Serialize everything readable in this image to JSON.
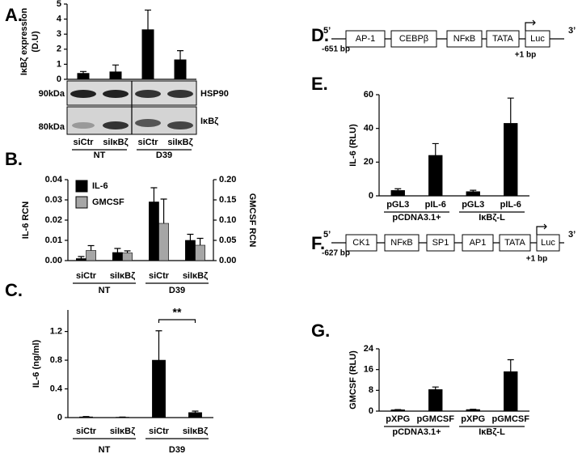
{
  "chart_data": [
    {
      "type": "bar",
      "panel_label": "A.",
      "ylabel": [
        "IκBζ expression",
        "(D.U)"
      ],
      "categories": [
        "siCtr",
        "siIκBζ",
        "siCtr",
        "siIκBζ"
      ],
      "groups": [
        "NT",
        "D39"
      ],
      "series": [
        {
          "color": "#000000",
          "values": [
            0.4,
            0.5,
            3.3,
            1.3
          ],
          "errors": [
            0.12,
            0.45,
            1.3,
            0.6
          ]
        }
      ],
      "ylim": [
        0,
        5
      ],
      "yticks": [
        0,
        1,
        2,
        3,
        4,
        5
      ]
    },
    {
      "type": "bar",
      "panel_label": "B.",
      "ylabel": "IL-6 RCN",
      "y2label": "GMCSF RCN",
      "categories": [
        "siCtr",
        "siIκBζ",
        "siCtr",
        "siIκBζ"
      ],
      "groups": [
        "NT",
        "D39"
      ],
      "series": [
        {
          "name": "IL-6",
          "color": "#000000",
          "values": [
            0.001,
            0.004,
            0.029,
            0.01
          ],
          "errors": [
            0.001,
            0.002,
            0.007,
            0.003
          ]
        },
        {
          "name": "GMCSF",
          "color": "#a6a6a6",
          "axis": "y2",
          "values": [
            0.025,
            0.019,
            0.092,
            0.038
          ],
          "errors": [
            0.012,
            0.005,
            0.06,
            0.017
          ]
        }
      ],
      "ylim": [
        0,
        0.04
      ],
      "yticks": [
        {
          "value": 0,
          "label": "0.00"
        },
        0.01,
        0.02,
        0.03,
        0.04
      ],
      "y2lim": [
        0,
        0.2
      ],
      "y2ticks": [
        {
          "value": 0,
          "label": "0.00"
        },
        0.05,
        {
          "value": 0.1,
          "label": "0.10"
        },
        0.15,
        {
          "value": 0.2,
          "label": "0.20"
        }
      ],
      "legend": "top-left"
    },
    {
      "type": "bar",
      "panel_label": "C.",
      "ylabel": "IL-6 (ng/ml)",
      "categories": [
        "siCtr",
        "siIκBζ",
        "siCtr",
        "siIκBζ"
      ],
      "groups": [
        "NT",
        "D39"
      ],
      "series": [
        {
          "color": "#000000",
          "values": [
            0.01,
            0.005,
            0.8,
            0.07
          ],
          "errors": [
            0.005,
            0.003,
            0.41,
            0.02
          ]
        }
      ],
      "ylim": [
        0,
        1.5
      ],
      "yticks": [
        0,
        0.4,
        0.8,
        1.2
      ],
      "annotation": "**"
    },
    {
      "type": "bar",
      "panel_label": "E.",
      "ylabel": "IL-6 (RLU)",
      "categories": [
        "pGL3",
        "pIL-6",
        "pGL3",
        "pIL-6"
      ],
      "groups": [
        "pCDNA3.1+",
        "IκBζ-L"
      ],
      "series": [
        {
          "color": "#000000",
          "values": [
            3.2,
            24,
            2.5,
            43
          ],
          "errors": [
            1,
            7,
            0.8,
            15
          ]
        }
      ],
      "ylim": [
        0,
        60
      ],
      "yticks": [
        0,
        20,
        40,
        60
      ]
    },
    {
      "type": "bar",
      "panel_label": "G.",
      "ylabel": "GMCSF (RLU)",
      "categories": [
        "pXPG",
        "pGMCSF",
        "pXPG",
        "pGMCSF"
      ],
      "groups": [
        "pCDNA3.1+",
        "IκBζ-L"
      ],
      "series": [
        {
          "color": "#000000",
          "values": [
            0.5,
            8.3,
            0.6,
            15.2
          ],
          "errors": [
            0.1,
            1,
            0.1,
            4.6
          ]
        }
      ],
      "ylim": [
        0,
        24
      ],
      "yticks": [
        0,
        8,
        16,
        24
      ]
    }
  ],
  "blot": {
    "bands": [
      {
        "size": "90kDa",
        "name": "HSP90"
      },
      {
        "size": "80kDa",
        "name": "IκBζ"
      }
    ]
  },
  "diagrams": [
    {
      "panel_label": "D.",
      "five_prime": "5’",
      "three_prime": "3’",
      "start": "-651 bp",
      "end": "+1 bp",
      "elements": [
        "AP-1",
        "CEBPβ",
        "NFκB",
        "TATA",
        "Luc"
      ]
    },
    {
      "panel_label": "F.",
      "five_prime": "5’",
      "three_prime": "3’",
      "start": "-627 bp",
      "end": "+1 bp",
      "elements": [
        "CK1",
        "NFκB",
        "SP1",
        "AP1",
        "TATA",
        "Luc"
      ]
    }
  ]
}
